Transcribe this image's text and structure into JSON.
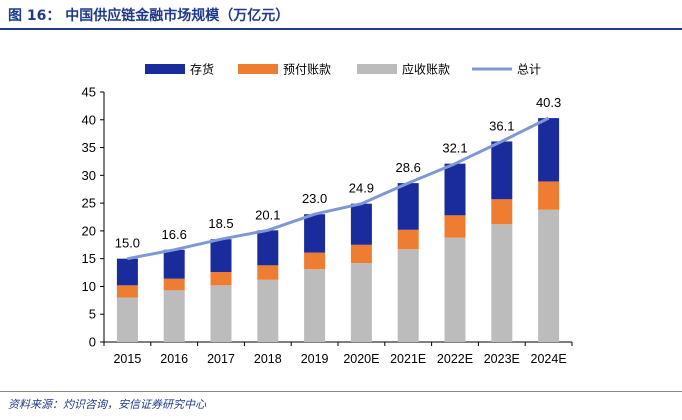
{
  "figure": {
    "title": "图 16： 中国供应链金融市场规模（万亿元）",
    "source": "资料来源：灼识咨询，安信证券研究中心"
  },
  "chart_data": {
    "type": "bar",
    "stacked": true,
    "categories": [
      "2015",
      "2016",
      "2017",
      "2018",
      "2019",
      "2020E",
      "2021E",
      "2022E",
      "2023E",
      "2024E"
    ],
    "series": [
      {
        "name": "应收账款",
        "kind": "bar",
        "color": "#bcbcbc",
        "values": [
          8.0,
          9.3,
          10.2,
          11.2,
          13.1,
          14.2,
          16.7,
          18.8,
          21.2,
          23.8
        ]
      },
      {
        "name": "预付账款",
        "kind": "bar",
        "color": "#ef7d31",
        "values": [
          2.2,
          2.1,
          2.4,
          2.6,
          3.0,
          3.3,
          3.5,
          4.0,
          4.5,
          5.1
        ]
      },
      {
        "name": "存货",
        "kind": "bar",
        "color": "#1a2b9b",
        "values": [
          4.8,
          5.2,
          5.9,
          6.3,
          6.9,
          7.4,
          8.4,
          9.3,
          10.4,
          11.4
        ]
      },
      {
        "name": "总计",
        "kind": "line",
        "color": "#7f98d5",
        "values": [
          15.0,
          16.6,
          18.5,
          20.1,
          23.0,
          24.9,
          28.6,
          32.1,
          36.1,
          40.3
        ]
      }
    ],
    "data_labels": [
      "15.0",
      "16.6",
      "18.5",
      "20.1",
      "23.0",
      "24.9",
      "28.6",
      "32.1",
      "36.1",
      "40.3"
    ],
    "legend_order": [
      "存货",
      "预付账款",
      "应收账款",
      "总计"
    ],
    "legend_position": "top",
    "ylim": [
      0,
      45
    ],
    "yticks": [
      "0",
      "5",
      "10",
      "15",
      "20",
      "25",
      "30",
      "35",
      "40",
      "45"
    ],
    "grid": false
  }
}
